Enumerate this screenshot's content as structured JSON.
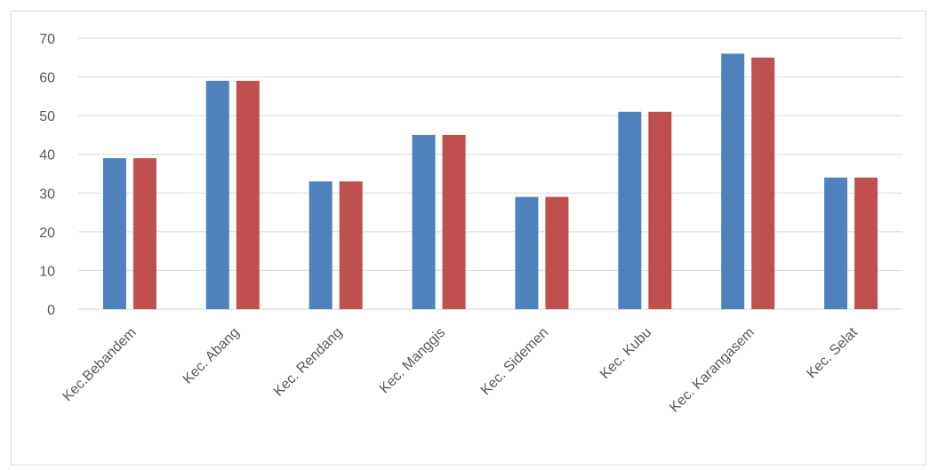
{
  "chart_data": {
    "type": "bar",
    "title": "",
    "xlabel": "",
    "ylabel": "",
    "categories": [
      "Kec.Bebandem",
      "Kec. Abang",
      "Kec. Rendang",
      "Kec. Manggis",
      "Kec. Sidemen",
      "Kec. Kubu",
      "Kec. Karangasem",
      "Kec. Selat"
    ],
    "series": [
      {
        "color": "#4f81bd",
        "values": [
          39,
          59,
          33,
          45,
          29,
          51,
          66,
          34
        ]
      },
      {
        "color": "#c0504d",
        "values": [
          39,
          59,
          33,
          45,
          29,
          51,
          65,
          34
        ]
      }
    ],
    "ylim": [
      0,
      70
    ],
    "yticks": [
      0,
      10,
      20,
      30,
      40,
      50,
      60,
      70
    ],
    "grid": true,
    "legend": "none"
  }
}
